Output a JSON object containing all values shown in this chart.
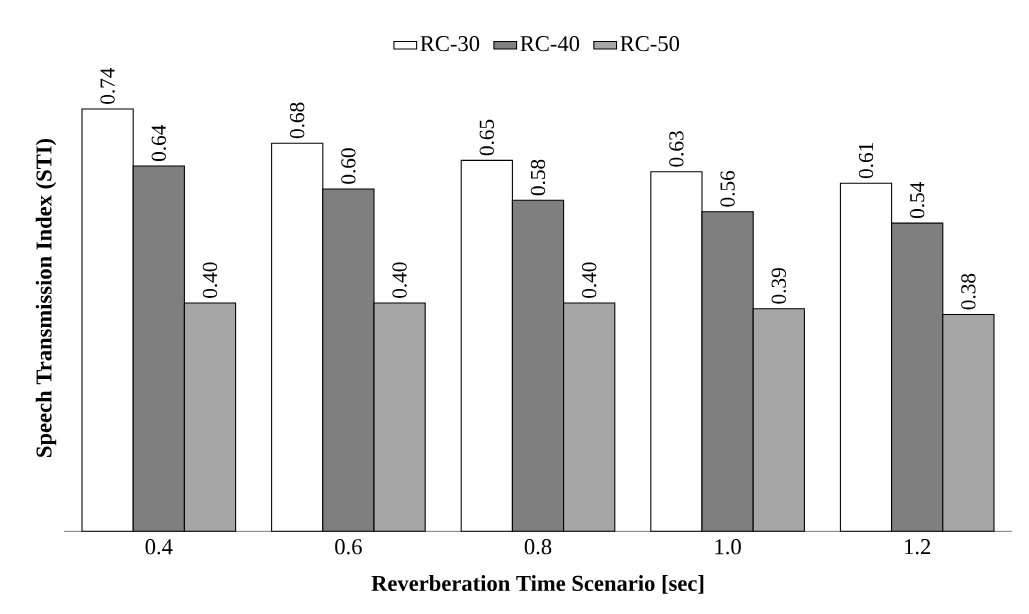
{
  "chart_data": {
    "type": "bar",
    "xlabel": "Reverberation Time Scenario [sec]",
    "ylabel": "Speech Transmission Index (STI)",
    "categories": [
      "0.4",
      "0.6",
      "0.8",
      "1.0",
      "1.2"
    ],
    "series": [
      {
        "name": "RC-30",
        "color": "#ffffff",
        "values": [
          0.74,
          0.68,
          0.65,
          0.63,
          0.61
        ],
        "value_labels": [
          "0.74",
          "0.68",
          "0.65",
          "0.63",
          "0.61"
        ]
      },
      {
        "name": "RC-40",
        "color": "#7f7f7f",
        "values": [
          0.64,
          0.6,
          0.58,
          0.56,
          0.54
        ],
        "value_labels": [
          "0.64",
          "0.60",
          "0.58",
          "0.56",
          "0.54"
        ]
      },
      {
        "name": "RC-50",
        "color": "#a6a6a6",
        "values": [
          0.4,
          0.4,
          0.4,
          0.39,
          0.38
        ],
        "value_labels": [
          "0.40",
          "0.40",
          "0.40",
          "0.39",
          "0.38"
        ]
      }
    ],
    "legend": "top"
  }
}
